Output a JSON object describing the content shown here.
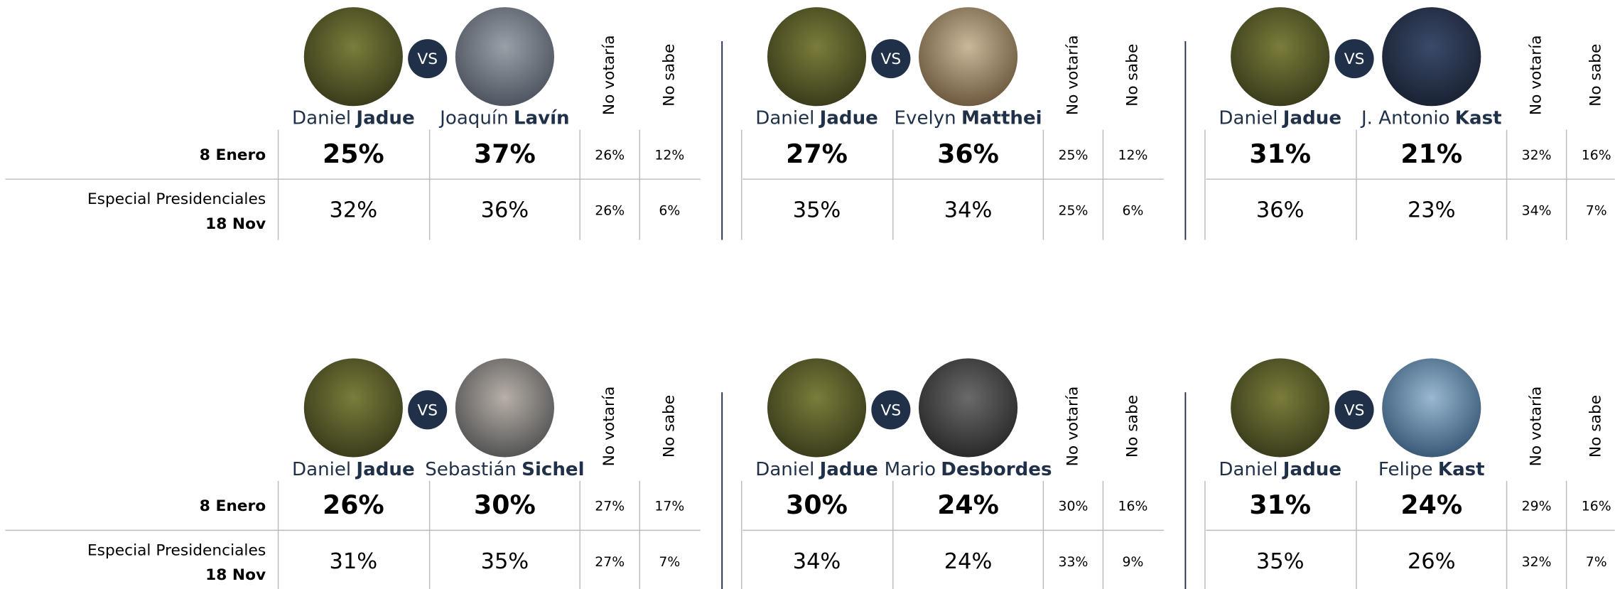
{
  "vs_label": "VS",
  "column_headers": [
    "No votaría",
    "No sabe"
  ],
  "sections": [
    {
      "row_labels": [
        {
          "line1": "8 Enero"
        },
        {
          "line1": "Especial Presidenciales",
          "line2": "18 Nov"
        }
      ],
      "panels": [
        {
          "candidate_a": {
            "first": "Daniel",
            "last": "Jadue"
          },
          "candidate_b": {
            "first": "Joaquín",
            "last": "Lavín"
          },
          "rows": [
            [
              "25%",
              "37%",
              "26%",
              "12%"
            ],
            [
              "32%",
              "36%",
              "26%",
              "6%"
            ]
          ]
        },
        {
          "candidate_a": {
            "first": "Daniel",
            "last": "Jadue"
          },
          "candidate_b": {
            "first": "Evelyn",
            "last": "Matthei"
          },
          "rows": [
            [
              "27%",
              "36%",
              "25%",
              "12%"
            ],
            [
              "35%",
              "34%",
              "25%",
              "6%"
            ]
          ]
        },
        {
          "candidate_a": {
            "first": "Daniel",
            "last": "Jadue"
          },
          "candidate_b": {
            "first": "J. Antonio",
            "last": "Kast"
          },
          "rows": [
            [
              "31%",
              "21%",
              "32%",
              "16%"
            ],
            [
              "36%",
              "23%",
              "34%",
              "7%"
            ]
          ]
        }
      ]
    },
    {
      "row_labels": [
        {
          "line1": "8 Enero"
        },
        {
          "line1": "Especial Presidenciales",
          "line2": "18 Nov"
        }
      ],
      "panels": [
        {
          "candidate_a": {
            "first": "Daniel",
            "last": "Jadue"
          },
          "candidate_b": {
            "first": "Sebastián",
            "last": "Sichel"
          },
          "rows": [
            [
              "26%",
              "30%",
              "27%",
              "17%"
            ],
            [
              "31%",
              "35%",
              "27%",
              "7%"
            ]
          ]
        },
        {
          "candidate_a": {
            "first": "Daniel",
            "last": "Jadue"
          },
          "candidate_b": {
            "first": "Mario",
            "last": "Desbordes"
          },
          "rows": [
            [
              "30%",
              "24%",
              "30%",
              "16%"
            ],
            [
              "34%",
              "24%",
              "33%",
              "9%"
            ]
          ]
        },
        {
          "candidate_a": {
            "first": "Daniel",
            "last": "Jadue"
          },
          "candidate_b": {
            "first": "Felipe",
            "last": "Kast"
          },
          "rows": [
            [
              "31%",
              "24%",
              "29%",
              "16%"
            ],
            [
              "35%",
              "26%",
              "32%",
              "7%"
            ]
          ]
        }
      ]
    }
  ]
}
